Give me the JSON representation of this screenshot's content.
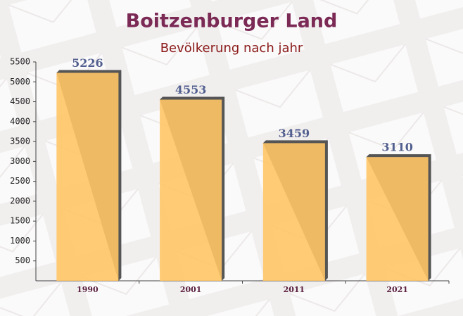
{
  "chart_data": {
    "type": "bar",
    "title": "Boitzenburger Land",
    "subtitle": "Bevölkerung nach jahr",
    "categories": [
      "1990",
      "2001",
      "2011",
      "2021"
    ],
    "values": [
      5226,
      4553,
      3459,
      3110
    ],
    "color": "#ffc566",
    "ylim": [
      0,
      5500
    ],
    "yticks": [
      500,
      1000,
      1500,
      2000,
      2500,
      3000,
      3500,
      4000,
      4500,
      5000,
      5500
    ],
    "grid": false
  }
}
